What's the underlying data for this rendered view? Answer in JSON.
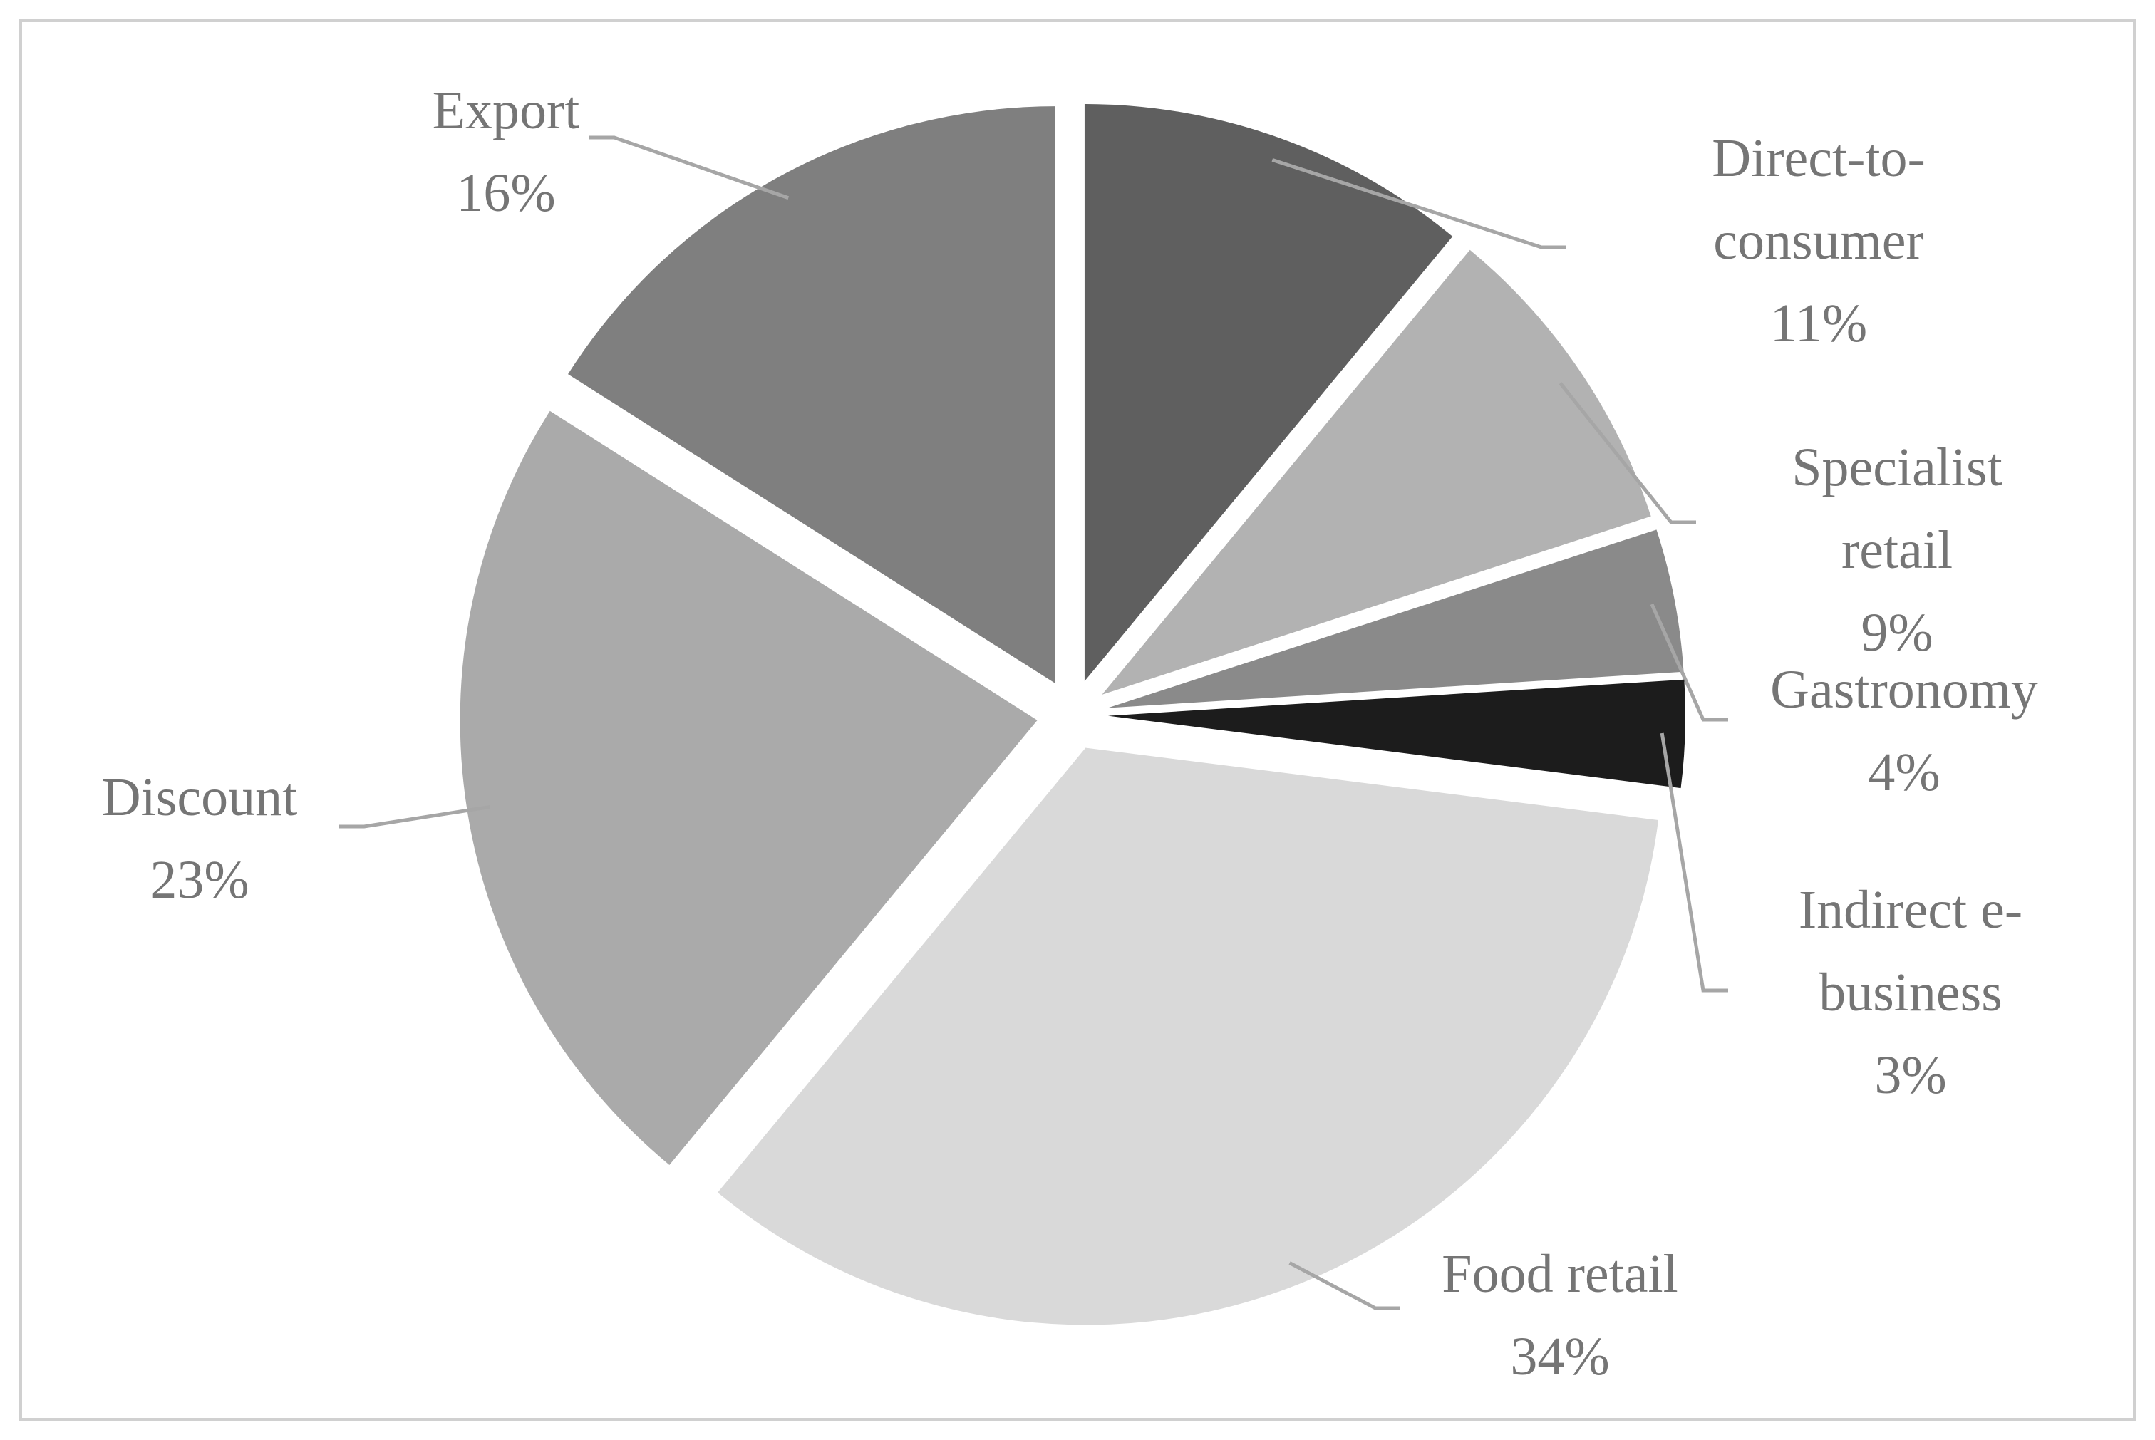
{
  "chart_data": {
    "type": "pie",
    "categories": [
      "Direct-to-consumer",
      "Specialist retail",
      "Gastronomy",
      "Indirect e-business",
      "Food retail",
      "Discount",
      "Export"
    ],
    "values": [
      11,
      9,
      4,
      3,
      34,
      23,
      16
    ],
    "value_labels": [
      "11%",
      "9%",
      "4%",
      "3%",
      "34%",
      "23%",
      "16%"
    ],
    "colors": [
      "#5f5f5f",
      "#b2b2b2",
      "#8a8a8a",
      "#1c1c1c",
      "#d9d9d9",
      "#aaaaaa",
      "#7f7f7f"
    ]
  }
}
